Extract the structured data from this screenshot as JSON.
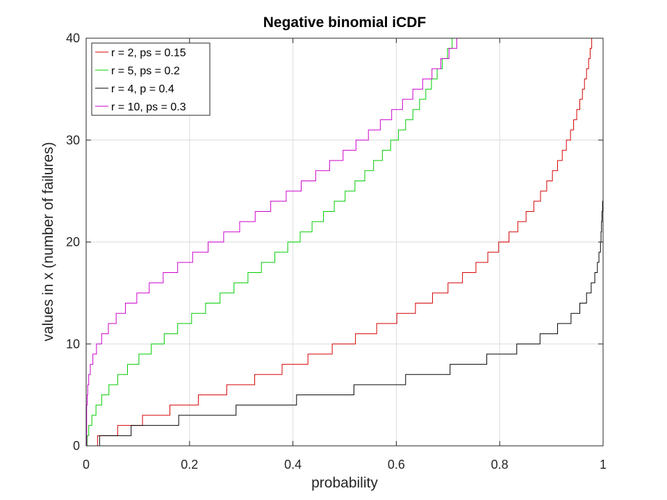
{
  "chart_data": {
    "type": "line",
    "title": "Negative binomial iCDF",
    "xlabel": "probability",
    "ylabel": "values in x (number of failures)",
    "xlim": [
      0,
      1
    ],
    "ylim": [
      0,
      40
    ],
    "xticks": [
      "0",
      "0.2",
      "0.4",
      "0.6",
      "0.8",
      "1"
    ],
    "yticks": [
      "0",
      "10",
      "20",
      "30",
      "40"
    ],
    "grid": true,
    "legend_position": "top-left",
    "series": [
      {
        "name": "r = 2, ps = 0.15",
        "color": "#d40000",
        "x": [
          0.0,
          0.022,
          0.061,
          0.109,
          0.162,
          0.217,
          0.272,
          0.326,
          0.379,
          0.429,
          0.476,
          0.521,
          0.562,
          0.601,
          0.637,
          0.67,
          0.7,
          0.728,
          0.754,
          0.777,
          0.798,
          0.818,
          0.835,
          0.851,
          0.866,
          0.879,
          0.891,
          0.902,
          0.912,
          0.921,
          0.929,
          0.937,
          0.943,
          0.949,
          0.955,
          0.96,
          0.964,
          0.968,
          0.972,
          0.975,
          0.978,
          0.981
        ],
        "y": [
          0,
          1,
          2,
          3,
          4,
          5,
          6,
          7,
          8,
          9,
          10,
          11,
          12,
          13,
          14,
          15,
          16,
          17,
          18,
          19,
          20,
          21,
          22,
          23,
          24,
          25,
          26,
          27,
          28,
          29,
          30,
          31,
          32,
          33,
          34,
          35,
          36,
          37,
          38,
          39,
          40,
          41
        ]
      },
      {
        "name": "r = 5, ps = 0.2",
        "color": "#00cc00",
        "x": [
          0.0,
          0.002,
          0.005,
          0.011,
          0.019,
          0.03,
          0.044,
          0.061,
          0.08,
          0.102,
          0.126,
          0.151,
          0.177,
          0.204,
          0.231,
          0.259,
          0.286,
          0.313,
          0.339,
          0.365,
          0.39,
          0.414,
          0.437,
          0.459,
          0.48,
          0.501,
          0.52,
          0.539,
          0.556,
          0.573,
          0.589,
          0.604,
          0.618,
          0.632,
          0.645,
          0.657,
          0.668,
          0.679,
          0.689,
          0.699,
          0.708,
          0.717
        ],
        "y": [
          0,
          1,
          2,
          3,
          4,
          5,
          6,
          7,
          8,
          9,
          10,
          11,
          12,
          13,
          14,
          15,
          16,
          17,
          18,
          19,
          20,
          21,
          22,
          23,
          24,
          25,
          26,
          27,
          28,
          29,
          30,
          31,
          32,
          33,
          34,
          35,
          36,
          37,
          38,
          39,
          40,
          41
        ]
      },
      {
        "name": "r = 4, p = 0.4",
        "color": "#000000",
        "x": [
          0.0,
          0.026,
          0.087,
          0.179,
          0.29,
          0.407,
          0.518,
          0.618,
          0.704,
          0.775,
          0.833,
          0.878,
          0.912,
          0.938,
          0.955,
          0.968,
          0.977,
          0.984,
          0.989,
          0.992,
          0.995,
          0.996,
          0.997,
          0.998,
          0.999
        ],
        "y": [
          0,
          1,
          2,
          3,
          4,
          5,
          6,
          7,
          8,
          9,
          10,
          11,
          12,
          13,
          14,
          15,
          16,
          17,
          18,
          19,
          20,
          21,
          22,
          23,
          24
        ]
      },
      {
        "name": "r = 10, ps = 0.3",
        "color": "#cc00cc",
        "x": [
          0.0,
          0.001,
          0.002,
          0.003,
          0.005,
          0.008,
          0.013,
          0.02,
          0.03,
          0.043,
          0.058,
          0.076,
          0.098,
          0.122,
          0.149,
          0.177,
          0.206,
          0.236,
          0.266,
          0.297,
          0.327,
          0.357,
          0.387,
          0.416,
          0.444,
          0.471,
          0.497,
          0.522,
          0.546,
          0.569,
          0.591,
          0.612,
          0.632,
          0.651,
          0.669,
          0.686,
          0.702,
          0.717,
          0.731,
          0.744,
          0.756,
          0.768
        ],
        "y": [
          0,
          4,
          5,
          6,
          7,
          8,
          9,
          10,
          11,
          12,
          13,
          14,
          15,
          16,
          17,
          18,
          19,
          20,
          21,
          22,
          23,
          24,
          25,
          26,
          27,
          28,
          29,
          30,
          31,
          32,
          33,
          34,
          35,
          36,
          37,
          38,
          39,
          40,
          41,
          42,
          43,
          44
        ]
      }
    ]
  }
}
